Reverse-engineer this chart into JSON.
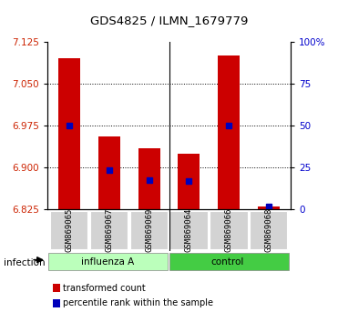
{
  "title": "GDS4825 / ILMN_1679779",
  "samples": [
    "GSM869065",
    "GSM869067",
    "GSM869069",
    "GSM869064",
    "GSM869066",
    "GSM869068"
  ],
  "groups": [
    "influenza A",
    "influenza A",
    "influenza A",
    "control",
    "control",
    "control"
  ],
  "group_label": "infection",
  "bar_bottom": 6.825,
  "red_values": [
    7.095,
    6.955,
    6.935,
    6.925,
    7.1,
    6.83
  ],
  "blue_values": [
    6.975,
    6.895,
    6.878,
    6.875,
    6.975,
    6.83
  ],
  "ylim": [
    6.825,
    7.125
  ],
  "yticks_left": [
    6.825,
    6.9,
    6.975,
    7.05,
    7.125
  ],
  "yticks_right": [
    0,
    25,
    50,
    75,
    100
  ],
  "ylabel_left_color": "#cc2200",
  "ylabel_right_color": "#0000cc",
  "bar_color": "#cc0000",
  "blue_color": "#0000bb",
  "bg_color": "#ffffff",
  "plot_bg": "#ffffff",
  "legend_red_label": "transformed count",
  "legend_blue_label": "percentile rank within the sample",
  "influenza_color": "#bbffbb",
  "control_color": "#44cc44",
  "sample_box_color": "#d3d3d3"
}
